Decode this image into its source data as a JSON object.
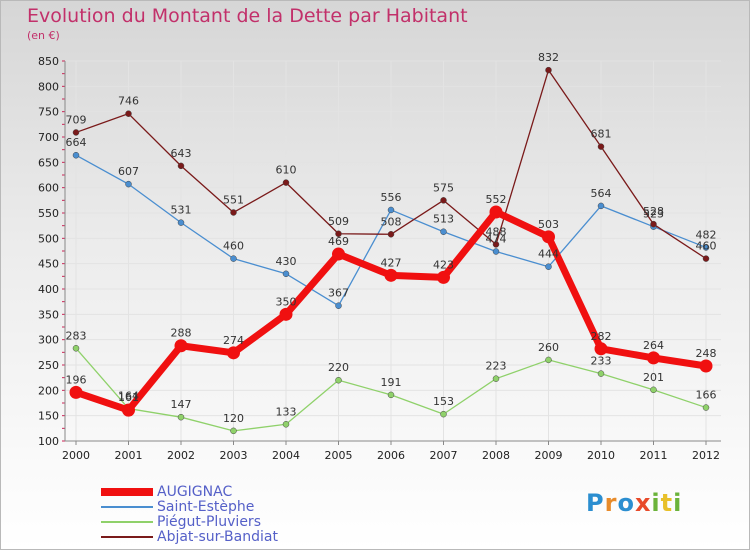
{
  "title": "Evolution du Montant de la Dette par Habitant",
  "subtitle": "(en €)",
  "logo": {
    "text": "Proxiti",
    "colors": [
      "#2b8ed0",
      "#e88b2a",
      "#2b8ed0",
      "#e84a2a",
      "#6bb33a",
      "#e8c02a",
      "#6bb33a"
    ]
  },
  "chart_data": {
    "type": "line",
    "title": "Evolution du Montant de la Dette par Habitant",
    "ylabel": "(en €)",
    "xlabel": "",
    "x": [
      "2000",
      "2001",
      "2002",
      "2003",
      "2004",
      "2005",
      "2006",
      "2007",
      "2008",
      "2009",
      "2010",
      "2011",
      "2012"
    ],
    "ylim": [
      100,
      850
    ],
    "yticks": [
      100,
      150,
      200,
      250,
      300,
      350,
      400,
      450,
      500,
      550,
      600,
      650,
      700,
      750,
      800,
      850
    ],
    "grid": true,
    "legend_position": "bottom-left",
    "series": [
      {
        "name": "AUGIGNAC",
        "color": "#f01010",
        "values": [
          196,
          161,
          288,
          274,
          350,
          469,
          427,
          423,
          552,
          503,
          282,
          264,
          248
        ]
      },
      {
        "name": "Saint-Estèphe",
        "color": "#4a8ed0",
        "values": [
          664,
          607,
          531,
          460,
          430,
          367,
          556,
          513,
          474,
          444,
          564,
          523,
          482
        ]
      },
      {
        "name": "Piégut-Pluviers",
        "color": "#8fd16a",
        "values": [
          283,
          164,
          147,
          120,
          133,
          220,
          191,
          153,
          223,
          260,
          233,
          201,
          166
        ]
      },
      {
        "name": "Abjat-sur-Bandiat",
        "color": "#7a1a1a",
        "values": [
          709,
          746,
          643,
          551,
          610,
          509,
          508,
          575,
          488,
          832,
          681,
          528,
          460
        ]
      }
    ]
  }
}
